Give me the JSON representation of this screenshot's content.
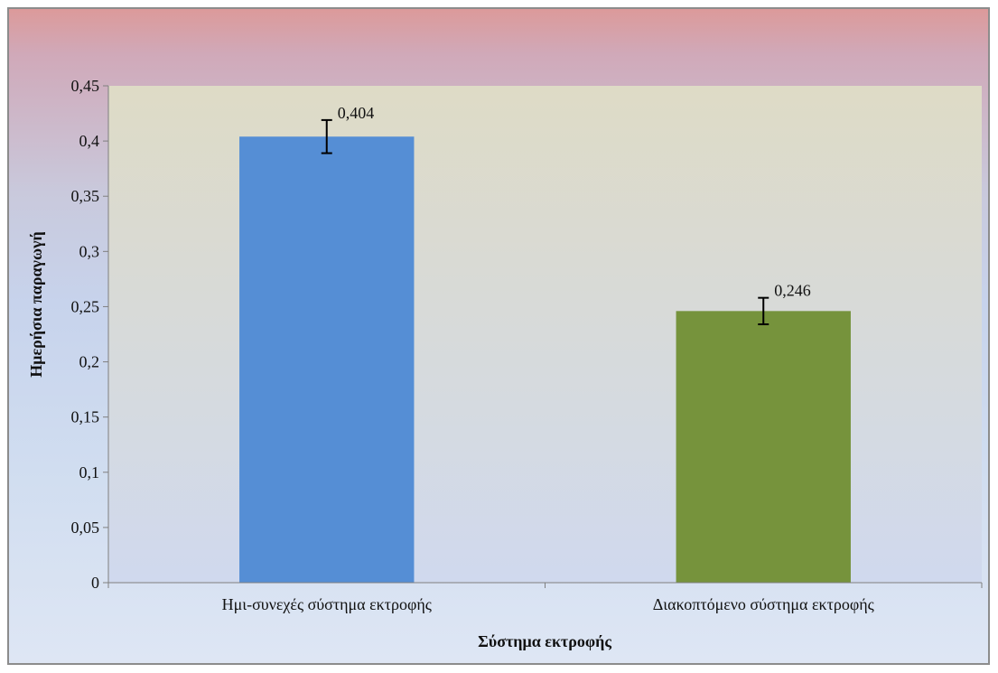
{
  "chart_data": {
    "type": "bar",
    "categories": [
      "Ημι-συνεχές σύστημα εκτροφής",
      "Διακοπτόμενο σύστημα εκτροφής"
    ],
    "values": [
      0.404,
      0.246
    ],
    "error": [
      0.015,
      0.012
    ],
    "value_labels": [
      "0,404",
      "0,246"
    ],
    "bar_colors": [
      "#558ed5",
      "#76933c"
    ],
    "title": "",
    "xlabel": "Σύστημα εκτροφής",
    "ylabel": "Ημερήσια παραγωγή",
    "ylim": [
      0,
      0.45
    ],
    "yticks": [
      {
        "value": 0,
        "label": "0"
      },
      {
        "value": 0.05,
        "label": "0,05"
      },
      {
        "value": 0.1,
        "label": "0,1"
      },
      {
        "value": 0.15,
        "label": "0,15"
      },
      {
        "value": 0.2,
        "label": "0,2"
      },
      {
        "value": 0.25,
        "label": "0,25"
      },
      {
        "value": 0.3,
        "label": "0,3"
      },
      {
        "value": 0.35,
        "label": "0,35"
      },
      {
        "value": 0.4,
        "label": "0,4"
      },
      {
        "value": 0.45,
        "label": "0,45"
      }
    ],
    "grid": false,
    "legend": "none",
    "plot_background": [
      "#dedbc6",
      "#d0d9ee"
    ]
  }
}
